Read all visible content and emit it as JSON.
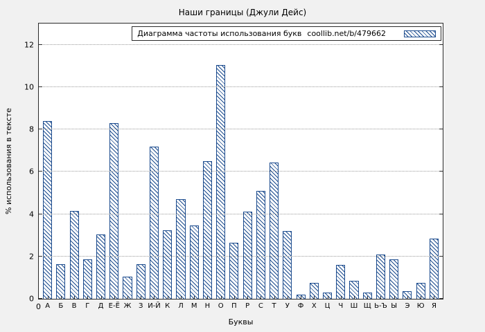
{
  "page": {
    "title": "Наши границы (Джули Дейс)"
  },
  "chart_data": {
    "type": "bar",
    "title": "Наши границы (Джули Дейс)",
    "legend_label": "Диаграмма частоты использования букв",
    "legend_source": "coollib.net/b/479662",
    "xlabel": "Буквы",
    "ylabel": "% использования в тексте",
    "origin_label": "0",
    "categories": [
      "А",
      "Б",
      "В",
      "Г",
      "Д",
      "Е-Ё",
      "Ж",
      "З",
      "И-Й",
      "К",
      "Л",
      "М",
      "Н",
      "О",
      "П",
      "Р",
      "С",
      "Т",
      "У",
      "Ф",
      "Х",
      "Ц",
      "Ч",
      "Ш",
      "Щ",
      "Ь-Ъ",
      "Ы",
      "Э",
      "Ю",
      "Я"
    ],
    "values": [
      8.4,
      1.65,
      4.15,
      1.85,
      3.05,
      8.3,
      1.05,
      1.65,
      7.2,
      3.25,
      4.7,
      3.45,
      6.5,
      11.05,
      2.65,
      4.1,
      5.1,
      6.45,
      3.2,
      0.2,
      0.75,
      0.3,
      1.6,
      0.85,
      0.3,
      2.1,
      1.85,
      0.35,
      0.75,
      2.85
    ],
    "yticks": [
      0,
      2,
      4,
      6,
      8,
      10,
      12
    ],
    "ylim": [
      0,
      13
    ],
    "grid": "horizontal-dotted",
    "legend_position": "top-right-inside",
    "bar_color": "#1a4a8d",
    "background_color": "#f1f1f1",
    "plot_background": "#ffffff"
  }
}
